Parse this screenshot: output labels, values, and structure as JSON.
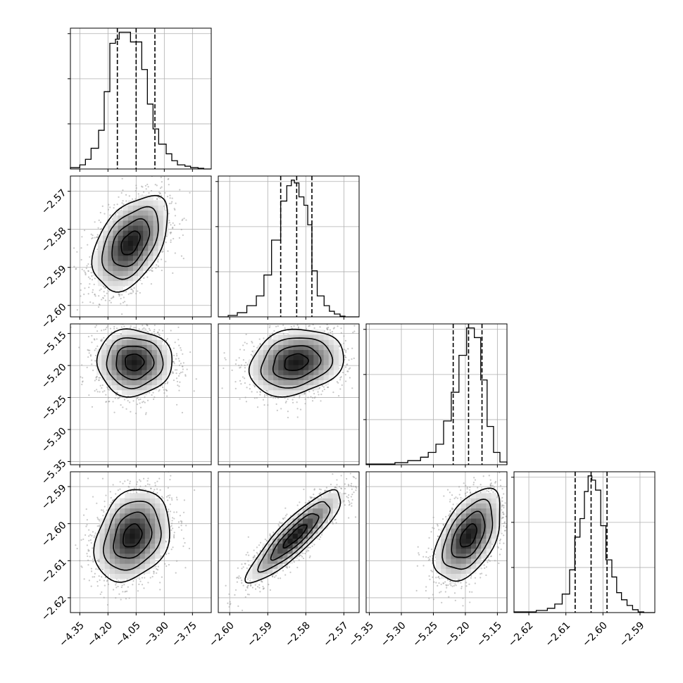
{
  "chart_data": {
    "type": "corner",
    "grid": true,
    "parameters": [
      {
        "name": "",
        "range": [
          -4.4,
          -3.65
        ],
        "ticks": [
          -4.35,
          -4.2,
          -4.05,
          -3.9,
          -3.75
        ],
        "tick_labels": [
          "−4.35",
          "−4.20",
          "−4.05",
          "−3.90",
          "−3.75"
        ],
        "quantiles": [
          -4.15,
          -4.05,
          -3.95
        ],
        "hist_edges": [
          -4.4,
          -4.35,
          -4.32,
          -4.29,
          -4.25,
          -4.22,
          -4.19,
          -4.16,
          -4.14,
          -4.11,
          -4.08,
          -4.02,
          -3.99,
          -3.96,
          -3.93,
          -3.89,
          -3.86,
          -3.83,
          -3.79,
          -3.76,
          -3.72,
          -3.69,
          -3.65
        ],
        "hist_counts": [
          0.01,
          0.03,
          0.07,
          0.15,
          0.28,
          0.56,
          0.91,
          0.94,
          0.99,
          0.99,
          0.92,
          0.72,
          0.47,
          0.29,
          0.18,
          0.11,
          0.06,
          0.03,
          0.02,
          0.01,
          0.005,
          0.0
        ]
      },
      {
        "name": "",
        "range": [
          -2.603,
          -2.566
        ],
        "ticks": [
          -2.6,
          -2.59,
          -2.58,
          -2.57
        ],
        "tick_labels": [
          "−2.60",
          "−2.59",
          "−2.58",
          "−2.57"
        ],
        "quantiles": [
          -2.5866,
          -2.5824,
          -2.5784
        ],
        "hist_edges": [
          -2.603,
          -2.6004,
          -2.598,
          -2.5955,
          -2.593,
          -2.591,
          -2.589,
          -2.5866,
          -2.585,
          -2.5838,
          -2.583,
          -2.5818,
          -2.5805,
          -2.5795,
          -2.5784,
          -2.577,
          -2.5752,
          -2.5738,
          -2.5725,
          -2.571,
          -2.5697,
          -2.566
        ],
        "hist_counts": [
          0.0,
          0.01,
          0.03,
          0.08,
          0.15,
          0.3,
          0.55,
          0.83,
          0.94,
          0.98,
          0.96,
          0.86,
          0.8,
          0.66,
          0.33,
          0.15,
          0.08,
          0.04,
          0.02,
          0.005,
          0.0
        ]
      },
      {
        "name": "",
        "range": [
          -5.355,
          -5.135
        ],
        "ticks": [
          -5.35,
          -5.3,
          -5.25,
          -5.2,
          -5.15
        ],
        "tick_labels": [
          "−5.35",
          "−5.30",
          "−5.25",
          "−5.20",
          "−5.15"
        ],
        "quantiles": [
          -5.219,
          -5.195,
          -5.174
        ],
        "hist_edges": [
          -5.355,
          -5.31,
          -5.29,
          -5.27,
          -5.258,
          -5.246,
          -5.234,
          -5.222,
          -5.21,
          -5.198,
          -5.186,
          -5.176,
          -5.166,
          -5.156,
          -5.146,
          -5.135
        ],
        "hist_counts": [
          0.005,
          0.015,
          0.03,
          0.055,
          0.09,
          0.15,
          0.32,
          0.53,
          0.8,
          1.0,
          0.93,
          0.62,
          0.28,
          0.09,
          0.02
        ]
      },
      {
        "name": "",
        "range": [
          -2.624,
          -2.586
        ],
        "ticks": [
          -2.62,
          -2.61,
          -2.6,
          -2.59
        ],
        "tick_labels": [
          "−2.62",
          "−2.61",
          "−2.60",
          "−2.59"
        ],
        "quantiles": [
          -2.6075,
          -2.6032,
          -2.5989
        ],
        "hist_edges": [
          -2.624,
          -2.618,
          -2.615,
          -2.613,
          -2.611,
          -2.609,
          -2.6076,
          -2.6062,
          -2.605,
          -2.604,
          -2.603,
          -2.602,
          -2.6006,
          -2.5992,
          -2.5976,
          -2.5963,
          -2.595,
          -2.5935,
          -2.592,
          -2.5905,
          -2.589,
          -2.586
        ],
        "hist_counts": [
          0.005,
          0.015,
          0.03,
          0.06,
          0.13,
          0.3,
          0.53,
          0.66,
          0.85,
          0.96,
          0.93,
          0.86,
          0.61,
          0.37,
          0.25,
          0.14,
          0.09,
          0.05,
          0.02,
          0.005,
          0.0
        ]
      }
    ],
    "pairs": [
      {
        "row": 1,
        "col": 0,
        "center": [
          -4.08,
          -2.5836
        ],
        "sd": [
          0.1,
          0.0062
        ],
        "corr": 0.45,
        "points": 1800
      },
      {
        "row": 2,
        "col": 0,
        "center": [
          -4.06,
          -5.195
        ],
        "sd": [
          0.1,
          0.026
        ],
        "corr": 0.0,
        "points": 1800
      },
      {
        "row": 2,
        "col": 1,
        "center": [
          -2.5826,
          -5.195
        ],
        "sd": [
          0.0062,
          0.026
        ],
        "corr": 0.2,
        "points": 1800
      },
      {
        "row": 3,
        "col": 0,
        "center": [
          -4.07,
          -2.6033
        ],
        "sd": [
          0.1,
          0.0062
        ],
        "corr": 0.25,
        "points": 1800
      },
      {
        "row": 3,
        "col": 1,
        "center": [
          -2.5828,
          -2.6033
        ],
        "sd": [
          0.0062,
          0.0062
        ],
        "corr": 0.88,
        "points": 1800
      },
      {
        "row": 3,
        "col": 2,
        "center": [
          -5.195,
          -2.6033
        ],
        "sd": [
          0.026,
          0.0062
        ],
        "corr": 0.5,
        "points": 1800
      }
    ]
  }
}
